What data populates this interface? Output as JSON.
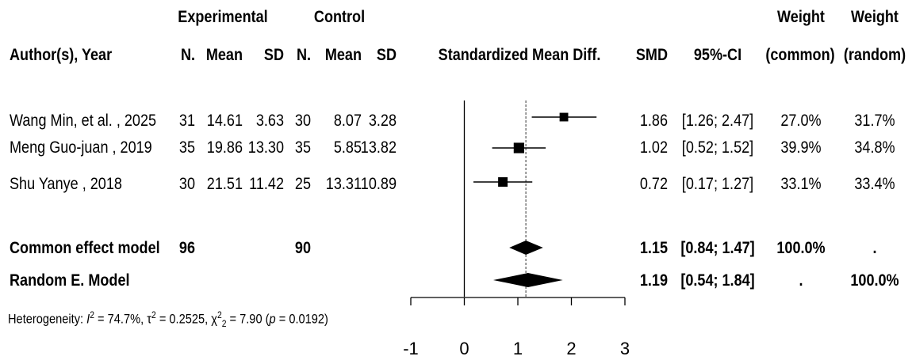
{
  "header": {
    "group1": "Experimental",
    "group2": "Control",
    "author": "Author(s), Year",
    "n1": "N.",
    "mean1": "Mean",
    "sd1": "SD",
    "n2": "N.",
    "mean2": "Mean",
    "sd2": "SD",
    "effect": "Standardized Mean Diff.",
    "smd": "SMD",
    "ci": "95%-CI",
    "w_common_1": "Weight",
    "w_common_2": "(common)",
    "w_random_1": "Weight",
    "w_random_2": "(random)"
  },
  "studies": [
    {
      "author": "Wang Min, et al. , 2025",
      "n1": "31",
      "mean1": "14.61",
      "sd1": "3.63",
      "n2": "30",
      "mean2": "8.07",
      "sd2": "3.28",
      "smd": "1.86",
      "ci": "[1.26; 2.47]",
      "w_common": "27.0%",
      "w_random": "31.7%"
    },
    {
      "author": "Meng Guo-juan , 2019",
      "n1": "35",
      "mean1": "19.86",
      "sd1": "13.30",
      "n2": "35",
      "mean2": "5.85",
      "sd2": "13.82",
      "smd": "1.02",
      "ci": "[0.52; 1.52]",
      "w_common": "39.9%",
      "w_random": "34.8%"
    },
    {
      "author": "Shu Yanye , 2018",
      "n1": "30",
      "mean1": "21.51",
      "sd1": "11.42",
      "n2": "25",
      "mean2": "13.31",
      "sd2": "10.89",
      "smd": "0.72",
      "ci": "[0.17; 1.27]",
      "w_common": "33.1%",
      "w_random": "33.4%"
    }
  ],
  "summary": [
    {
      "label": "Common effect model",
      "n1": "96",
      "n2": "90",
      "smd": "1.15",
      "ci": "[0.84; 1.47]",
      "w_common": "100.0%",
      "w_random": "."
    },
    {
      "label": "Random E. Model",
      "smd": "1.19",
      "ci": "[0.54; 1.84]",
      "w_common": ".",
      "w_random": "100.0%"
    }
  ],
  "heterogeneity": {
    "prefix": "Heterogeneity: ",
    "i2_sym": "I",
    "i2_val": " = 74.7%, ",
    "tau_sym": "τ",
    "tau_val": " = 0.2525, ",
    "chi_sym": "χ",
    "chi_df": "2",
    "chi_val": " = 7.90 (",
    "p_sym": "p",
    "p_val": " = 0.0192)"
  },
  "chart_data": {
    "type": "forest",
    "xlim": [
      -1,
      3
    ],
    "ticks": [
      "-1",
      "0",
      "1",
      "2",
      "3"
    ],
    "null_line": 0,
    "pooled_line": 1.15,
    "studies": [
      {
        "name": "Wang Min, et al. , 2025",
        "smd": 1.86,
        "lower": 1.26,
        "upper": 2.47,
        "weight": 27.0
      },
      {
        "name": "Meng Guo-juan , 2019",
        "smd": 1.02,
        "lower": 0.52,
        "upper": 1.52,
        "weight": 39.9
      },
      {
        "name": "Shu Yanye , 2018",
        "smd": 0.72,
        "lower": 0.17,
        "upper": 1.27,
        "weight": 33.1
      }
    ],
    "pooled": [
      {
        "name": "Common effect model",
        "smd": 1.15,
        "lower": 0.84,
        "upper": 1.47
      },
      {
        "name": "Random E. Model",
        "smd": 1.19,
        "lower": 0.54,
        "upper": 1.84
      }
    ]
  }
}
